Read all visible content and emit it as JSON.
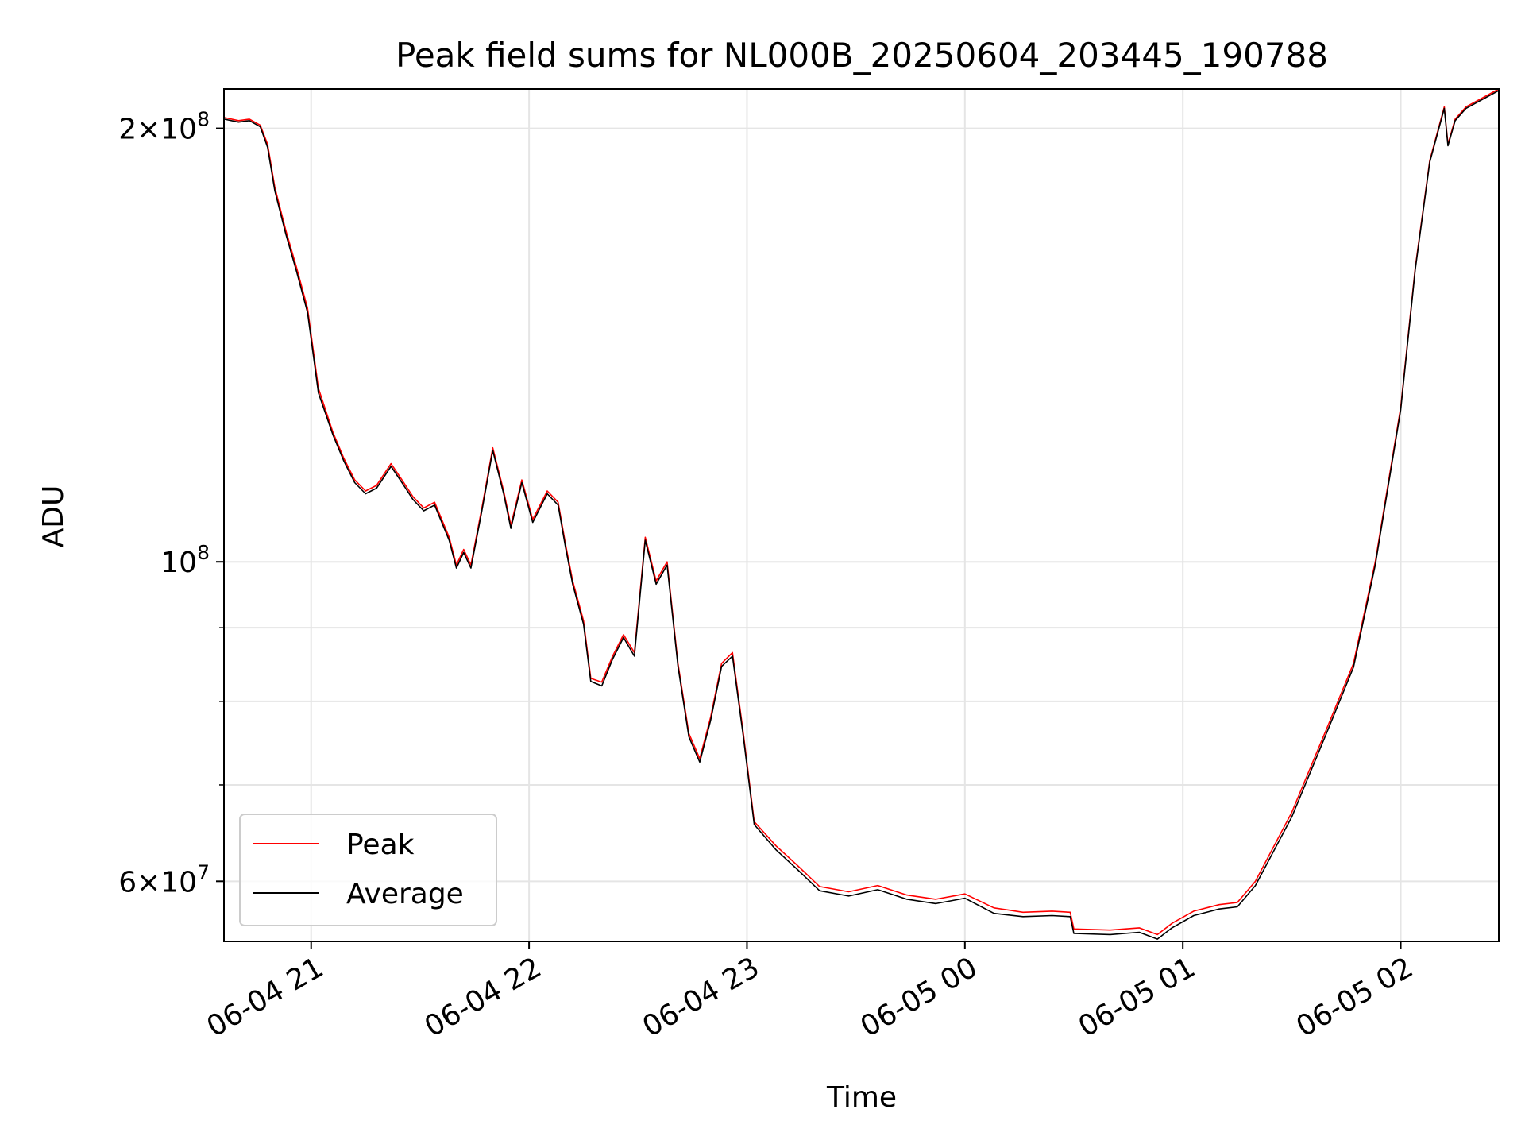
{
  "chart_data": {
    "type": "line",
    "title": "Peak field sums for NL000B_20250604_203445_190788",
    "xlabel": "Time",
    "ylabel": "ADU",
    "yscale": "log",
    "xlim": [
      "2025-06-04 20:36",
      "2025-06-05 02:27"
    ],
    "ylim": [
      54500000,
      213000000
    ],
    "grid": true,
    "legend_position": "lower-left",
    "x_ticks": [
      {
        "t": "2025-06-04 21:00",
        "label": "06-04 21"
      },
      {
        "t": "2025-06-04 22:00",
        "label": "06-04 22"
      },
      {
        "t": "2025-06-04 23:00",
        "label": "06-04 23"
      },
      {
        "t": "2025-06-05 00:00",
        "label": "06-05 00"
      },
      {
        "t": "2025-06-05 01:00",
        "label": "06-05 01"
      },
      {
        "t": "2025-06-05 02:00",
        "label": "06-05 02"
      }
    ],
    "y_major_ticks": [
      {
        "value": 60000000,
        "mant": "6",
        "exp": "7"
      },
      {
        "value": 100000000,
        "mant": "",
        "exp": "8"
      },
      {
        "value": 200000000,
        "mant": "2",
        "exp": "8"
      }
    ],
    "y_minor_ticks": [
      70000000,
      80000000,
      90000000
    ],
    "colors": {
      "peak": "#ff0000",
      "average": "#000000",
      "grid": "#e5e5e5"
    },
    "series": [
      {
        "name": "Peak",
        "color": "#ff0000",
        "points": [
          [
            "2025-06-04 20:36",
            203500000
          ],
          [
            "2025-06-04 20:40",
            202500000
          ],
          [
            "2025-06-04 20:43",
            203000000
          ],
          [
            "2025-06-04 20:46",
            201000000
          ],
          [
            "2025-06-04 20:48",
            195000000
          ],
          [
            "2025-06-04 20:50",
            182000000
          ],
          [
            "2025-06-04 20:53",
            170000000
          ],
          [
            "2025-06-04 20:56",
            160000000
          ],
          [
            "2025-06-04 20:59",
            150000000
          ],
          [
            "2025-06-04 21:02",
            132000000
          ],
          [
            "2025-06-04 21:06",
            123000000
          ],
          [
            "2025-06-04 21:09",
            118000000
          ],
          [
            "2025-06-04 21:12",
            114000000
          ],
          [
            "2025-06-04 21:15",
            112000000
          ],
          [
            "2025-06-04 21:18",
            113000000
          ],
          [
            "2025-06-04 21:22",
            117000000
          ],
          [
            "2025-06-04 21:25",
            114000000
          ],
          [
            "2025-06-04 21:28",
            111000000
          ],
          [
            "2025-06-04 21:31",
            109000000
          ],
          [
            "2025-06-04 21:34",
            110000000
          ],
          [
            "2025-06-04 21:38",
            104000000
          ],
          [
            "2025-06-04 21:40",
            99500000
          ],
          [
            "2025-06-04 21:42",
            102000000
          ],
          [
            "2025-06-04 21:44",
            99500000
          ],
          [
            "2025-06-04 21:47",
            109000000
          ],
          [
            "2025-06-04 21:50",
            120000000
          ],
          [
            "2025-06-04 21:53",
            112000000
          ],
          [
            "2025-06-04 21:55",
            106000000
          ],
          [
            "2025-06-04 21:58",
            114000000
          ],
          [
            "2025-06-04 22:01",
            107000000
          ],
          [
            "2025-06-04 22:05",
            112000000
          ],
          [
            "2025-06-04 22:08",
            110000000
          ],
          [
            "2025-06-04 22:10",
            103000000
          ],
          [
            "2025-06-04 22:12",
            97000000
          ],
          [
            "2025-06-04 22:15",
            91000000
          ],
          [
            "2025-06-04 22:17",
            83000000
          ],
          [
            "2025-06-04 22:20",
            82500000
          ],
          [
            "2025-06-04 22:23",
            86000000
          ],
          [
            "2025-06-04 22:26",
            89000000
          ],
          [
            "2025-06-04 22:29",
            86500000
          ],
          [
            "2025-06-04 22:32",
            104000000
          ],
          [
            "2025-06-04 22:35",
            97000000
          ],
          [
            "2025-06-04 22:38",
            100000000
          ],
          [
            "2025-06-04 22:41",
            85000000
          ],
          [
            "2025-06-04 22:44",
            76000000
          ],
          [
            "2025-06-04 22:47",
            73000000
          ],
          [
            "2025-06-04 22:50",
            78000000
          ],
          [
            "2025-06-04 22:53",
            85000000
          ],
          [
            "2025-06-04 22:56",
            86500000
          ],
          [
            "2025-06-04 22:59",
            76000000
          ],
          [
            "2025-06-04 23:02",
            66000000
          ],
          [
            "2025-06-04 23:08",
            63500000
          ],
          [
            "2025-06-04 23:14",
            61500000
          ],
          [
            "2025-06-04 23:20",
            59500000
          ],
          [
            "2025-06-04 23:28",
            59000000
          ],
          [
            "2025-06-04 23:36",
            59600000
          ],
          [
            "2025-06-04 23:44",
            58700000
          ],
          [
            "2025-06-04 23:52",
            58300000
          ],
          [
            "2025-06-05 00:00",
            58800000
          ],
          [
            "2025-06-05 00:08",
            57500000
          ],
          [
            "2025-06-05 00:16",
            57100000
          ],
          [
            "2025-06-05 00:24",
            57200000
          ],
          [
            "2025-06-05 00:29",
            57100000
          ],
          [
            "2025-06-05 00:30",
            55600000
          ],
          [
            "2025-06-05 00:40",
            55500000
          ],
          [
            "2025-06-05 00:48",
            55700000
          ],
          [
            "2025-06-05 00:53",
            55100000
          ],
          [
            "2025-06-05 00:57",
            56100000
          ],
          [
            "2025-06-05 01:03",
            57200000
          ],
          [
            "2025-06-05 01:10",
            57800000
          ],
          [
            "2025-06-05 01:15",
            58000000
          ],
          [
            "2025-06-05 01:20",
            60000000
          ],
          [
            "2025-06-05 01:30",
            67000000
          ],
          [
            "2025-06-05 01:40",
            77000000
          ],
          [
            "2025-06-05 01:47",
            85000000
          ],
          [
            "2025-06-05 01:53",
            100000000
          ],
          [
            "2025-06-05 02:00",
            128000000
          ],
          [
            "2025-06-05 02:04",
            160000000
          ],
          [
            "2025-06-05 02:08",
            190000000
          ],
          [
            "2025-06-05 02:12",
            207000000
          ],
          [
            "2025-06-05 02:13",
            195000000
          ],
          [
            "2025-06-05 02:15",
            203000000
          ],
          [
            "2025-06-05 02:18",
            207000000
          ],
          [
            "2025-06-05 02:27",
            213000000
          ]
        ]
      },
      {
        "name": "Average",
        "color": "#000000",
        "points": [
          [
            "2025-06-04 20:36",
            203000000
          ],
          [
            "2025-06-04 20:40",
            202000000
          ],
          [
            "2025-06-04 20:43",
            202500000
          ],
          [
            "2025-06-04 20:46",
            200500000
          ],
          [
            "2025-06-04 20:48",
            194000000
          ],
          [
            "2025-06-04 20:50",
            181000000
          ],
          [
            "2025-06-04 20:53",
            169000000
          ],
          [
            "2025-06-04 20:56",
            159000000
          ],
          [
            "2025-06-04 20:59",
            149000000
          ],
          [
            "2025-06-04 21:02",
            131000000
          ],
          [
            "2025-06-04 21:06",
            122500000
          ],
          [
            "2025-06-04 21:09",
            117500000
          ],
          [
            "2025-06-04 21:12",
            113500000
          ],
          [
            "2025-06-04 21:15",
            111500000
          ],
          [
            "2025-06-04 21:18",
            112500000
          ],
          [
            "2025-06-04 21:22",
            116500000
          ],
          [
            "2025-06-04 21:25",
            113500000
          ],
          [
            "2025-06-04 21:28",
            110500000
          ],
          [
            "2025-06-04 21:31",
            108500000
          ],
          [
            "2025-06-04 21:34",
            109500000
          ],
          [
            "2025-06-04 21:38",
            103500000
          ],
          [
            "2025-06-04 21:40",
            99000000
          ],
          [
            "2025-06-04 21:42",
            101500000
          ],
          [
            "2025-06-04 21:44",
            99000000
          ],
          [
            "2025-06-04 21:47",
            108500000
          ],
          [
            "2025-06-04 21:50",
            119500000
          ],
          [
            "2025-06-04 21:53",
            111500000
          ],
          [
            "2025-06-04 21:55",
            105500000
          ],
          [
            "2025-06-04 21:58",
            113500000
          ],
          [
            "2025-06-04 22:01",
            106500000
          ],
          [
            "2025-06-04 22:05",
            111500000
          ],
          [
            "2025-06-04 22:08",
            109500000
          ],
          [
            "2025-06-04 22:10",
            102500000
          ],
          [
            "2025-06-04 22:12",
            96500000
          ],
          [
            "2025-06-04 22:15",
            90500000
          ],
          [
            "2025-06-04 22:17",
            82600000
          ],
          [
            "2025-06-04 22:20",
            82000000
          ],
          [
            "2025-06-04 22:23",
            85600000
          ],
          [
            "2025-06-04 22:26",
            88600000
          ],
          [
            "2025-06-04 22:29",
            86000000
          ],
          [
            "2025-06-04 22:32",
            103500000
          ],
          [
            "2025-06-04 22:35",
            96500000
          ],
          [
            "2025-06-04 22:38",
            99500000
          ],
          [
            "2025-06-04 22:41",
            84600000
          ],
          [
            "2025-06-04 22:44",
            75600000
          ],
          [
            "2025-06-04 22:47",
            72600000
          ],
          [
            "2025-06-04 22:50",
            77600000
          ],
          [
            "2025-06-04 22:53",
            84600000
          ],
          [
            "2025-06-04 22:56",
            86000000
          ],
          [
            "2025-06-04 22:59",
            75600000
          ],
          [
            "2025-06-04 23:02",
            65700000
          ],
          [
            "2025-06-04 23:08",
            63100000
          ],
          [
            "2025-06-04 23:14",
            61100000
          ],
          [
            "2025-06-04 23:20",
            59100000
          ],
          [
            "2025-06-04 23:28",
            58600000
          ],
          [
            "2025-06-04 23:36",
            59200000
          ],
          [
            "2025-06-04 23:44",
            58300000
          ],
          [
            "2025-06-04 23:52",
            57900000
          ],
          [
            "2025-06-05 00:00",
            58400000
          ],
          [
            "2025-06-05 00:08",
            57000000
          ],
          [
            "2025-06-05 00:16",
            56700000
          ],
          [
            "2025-06-05 00:24",
            56800000
          ],
          [
            "2025-06-05 00:29",
            56700000
          ],
          [
            "2025-06-05 00:30",
            55200000
          ],
          [
            "2025-06-05 00:40",
            55100000
          ],
          [
            "2025-06-05 00:48",
            55300000
          ],
          [
            "2025-06-05 00:53",
            54700000
          ],
          [
            "2025-06-05 00:57",
            55700000
          ],
          [
            "2025-06-05 01:03",
            56800000
          ],
          [
            "2025-06-05 01:10",
            57400000
          ],
          [
            "2025-06-05 01:15",
            57600000
          ],
          [
            "2025-06-05 01:20",
            59600000
          ],
          [
            "2025-06-05 01:30",
            66500000
          ],
          [
            "2025-06-05 01:40",
            76500000
          ],
          [
            "2025-06-05 01:47",
            84500000
          ],
          [
            "2025-06-05 01:53",
            99500000
          ],
          [
            "2025-06-05 02:00",
            127500000
          ],
          [
            "2025-06-05 02:04",
            159500000
          ],
          [
            "2025-06-05 02:08",
            189500000
          ],
          [
            "2025-06-05 02:12",
            206500000
          ],
          [
            "2025-06-05 02:13",
            194500000
          ],
          [
            "2025-06-05 02:15",
            202500000
          ],
          [
            "2025-06-05 02:18",
            206500000
          ],
          [
            "2025-06-05 02:27",
            212500000
          ]
        ]
      }
    ],
    "legend": [
      {
        "label": "Peak",
        "color": "#ff0000"
      },
      {
        "label": "Average",
        "color": "#000000"
      }
    ]
  }
}
